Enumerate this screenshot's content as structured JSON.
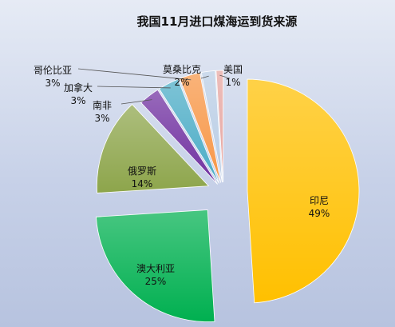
{
  "chart_data": {
    "type": "pie",
    "title": "我国11月进口煤海运到货来源",
    "slices": [
      {
        "label": "印尼",
        "value": 49,
        "percent_label": "49%",
        "color": "#FFC000"
      },
      {
        "label": "澳大利亚",
        "value": 25,
        "percent_label": "25%",
        "color": "#00B050"
      },
      {
        "label": "俄罗斯",
        "value": 14,
        "percent_label": "14%",
        "color": "#8DA54B"
      },
      {
        "label": "南非",
        "value": 3,
        "percent_label": "3%",
        "color": "#7030A0"
      },
      {
        "label": "加拿大",
        "value": 3,
        "percent_label": "3%",
        "color": "#4BACC6"
      },
      {
        "label": "哥伦比亚",
        "value": 3,
        "percent_label": "3%",
        "color": "#F79646"
      },
      {
        "label": "莫桑比克",
        "value": 2,
        "percent_label": "2%",
        "color": "#B9CDE5"
      },
      {
        "label": "美国",
        "value": 1,
        "percent_label": "1%",
        "color": "#E6A5A0"
      }
    ],
    "exploded": true,
    "legend": "none"
  }
}
